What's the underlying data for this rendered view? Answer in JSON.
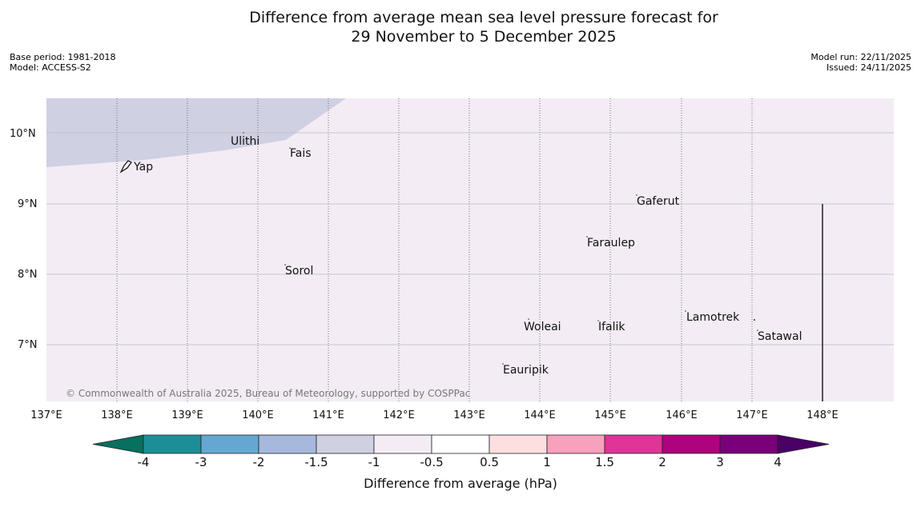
{
  "title": {
    "line1": "Difference from average mean sea level pressure forecast for",
    "line2": "29 November to 5 December 2025"
  },
  "meta": {
    "base_period": "Base period: 1981-2018",
    "model": "Model: ACCESS-S2",
    "model_run": "Model run: 22/11/2025",
    "issued": "Issued: 24/11/2025"
  },
  "map": {
    "lon_labels": [
      "137°E",
      "138°E",
      "139°E",
      "140°E",
      "141°E",
      "142°E",
      "143°E",
      "144°E",
      "145°E",
      "146°E",
      "147°E",
      "148°E"
    ],
    "lat_labels": [
      "10°N",
      "9°N",
      "8°N",
      "7°N"
    ],
    "places": [
      "Ulithi",
      "Fais",
      "Yap",
      "Gaferut",
      "Faraulep",
      "Sorol",
      "Lamotrek",
      "Woleai",
      "Ifalik",
      "Satawal",
      "Eauripik"
    ],
    "copyright": "© Commonwealth of Australia 2025, Bureau of Meteorology, supported by COSPPac",
    "colors": {
      "background_anomaly": "#f3ecf5",
      "low_anomaly": "#d0d0e3"
    }
  },
  "colorbar": {
    "ticks": [
      "-4",
      "-3",
      "-2",
      "-1.5",
      "-1",
      "-0.5",
      "0.5",
      "1",
      "1.5",
      "2",
      "3",
      "4"
    ],
    "colors": [
      "#07705f",
      "#1c8f96",
      "#64a8d1",
      "#a6b8db",
      "#d0d0e3",
      "#f3ecf5",
      "#ffffff",
      "#fedfe0",
      "#f7a1bd",
      "#dd3598",
      "#ae037e",
      "#790078",
      "#4b0065"
    ],
    "label": "Difference from average (hPa)"
  }
}
